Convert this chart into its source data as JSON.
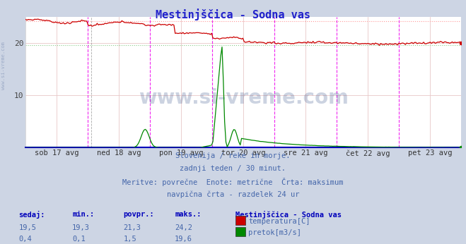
{
  "title": "Mestinjščica - Sodna vas",
  "bg_color": "#cdd5e4",
  "plot_bg_color": "#ffffff",
  "x_labels": [
    "sob 17 avg",
    "ned 18 avg",
    "pon 19 avg",
    "tor 20 avg",
    "sre 21 avg",
    "čet 22 avg",
    "pet 23 avg"
  ],
  "subtitle_lines": [
    "Slovenija / reke in morje.",
    "zadnji teden / 30 minut.",
    "Meritve: povrečne  Enote: metrične  Črta: maksimum",
    "navpična črta - razdelek 24 ur"
  ],
  "legend_title": "Mestinjščica - Sodna vas",
  "legend_items": [
    {
      "label": "temperatura[C]",
      "color": "#cc0000"
    },
    {
      "label": "pretok[m3/s]",
      "color": "#008800"
    }
  ],
  "table_headers": [
    "sedaj:",
    "min.:",
    "povpr.:",
    "maks.:"
  ],
  "table_rows": [
    [
      "19,5",
      "19,3",
      "21,3",
      "24,2"
    ],
    [
      "0,4",
      "0,1",
      "1,5",
      "19,6"
    ]
  ],
  "temp_color": "#cc0000",
  "flow_color": "#008800",
  "temp_max_color": "#ff9999",
  "flow_max_color": "#88cc88",
  "vline_color": "#ee00ee",
  "grid_color": "#ddbbbb",
  "temp_max_val": 24.2,
  "flow_max_val": 19.6,
  "ylim": [
    0,
    25
  ],
  "watermark": "www.si-vreme.com",
  "watermark_color": "#1a3a7a",
  "left_text": "www.si-vreme.com",
  "n_points": 336
}
